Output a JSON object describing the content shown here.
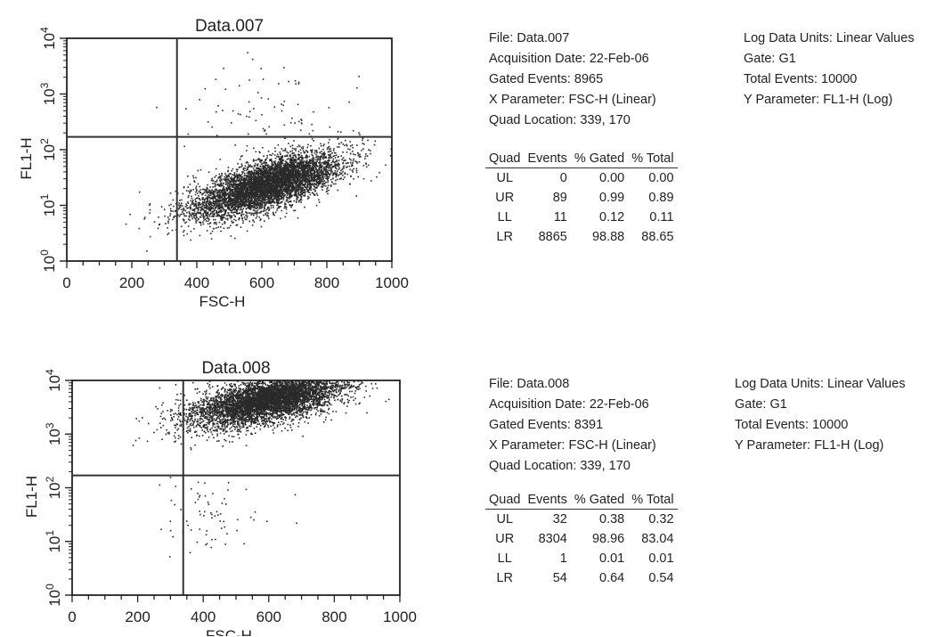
{
  "chart_data": [
    {
      "type": "scatter",
      "title": "Data.007",
      "xlabel": "FSC-H",
      "ylabel": "FL1-H",
      "xlim": [
        0,
        1000
      ],
      "ylim": [
        1,
        10000
      ],
      "yscale": "log",
      "xticks": [
        "0",
        "200",
        "400",
        "600",
        "800",
        "1000"
      ],
      "yticks": [
        {
          "base": "10",
          "exp": "0"
        },
        {
          "base": "10",
          "exp": "1"
        },
        {
          "base": "10",
          "exp": "2"
        },
        {
          "base": "10",
          "exp": "3"
        },
        {
          "base": "10",
          "exp": "4"
        }
      ],
      "quad_location": {
        "x": 339,
        "y": 170
      },
      "clusters": [
        {
          "x_center": 600,
          "x_spread": 120,
          "log_y_center": 1.35,
          "log_y_spread": 0.22,
          "count": 4200,
          "tilt": 0.0018
        },
        {
          "x_center": 650,
          "x_spread": 90,
          "log_y_center": 1.45,
          "log_y_spread": 0.18,
          "count": 1600,
          "tilt": 0.0015
        }
      ],
      "sparse": [
        {
          "x_center": 620,
          "x_spread": 120,
          "log_y_center": 2.6,
          "log_y_spread": 0.45,
          "count": 90
        }
      ],
      "info": {
        "file": "File: Data.007",
        "acq_date": "Acquisition Date: 22-Feb-06",
        "gated": "Gated Events: 8965",
        "xparam": "X Parameter: FSC-H (Linear)",
        "quadloc": "Quad Location: 339, 170",
        "logunits": "Log Data Units: Linear Values",
        "gate": "Gate: G1",
        "total": "Total Events: 10000",
        "yparam": "Y Parameter: FL1-H (Log)"
      },
      "table": {
        "headers": [
          "Quad",
          "Events",
          "% Gated",
          "% Total"
        ],
        "rows": [
          [
            "UL",
            "0",
            "0.00",
            "0.00"
          ],
          [
            "UR",
            "89",
            "0.99",
            "0.89"
          ],
          [
            "LL",
            "11",
            "0.12",
            "0.11"
          ],
          [
            "LR",
            "8865",
            "98.88",
            "88.65"
          ]
        ]
      }
    },
    {
      "type": "scatter",
      "title": "Data.008",
      "xlabel": "FSC-H",
      "ylabel": "FL1-H",
      "xlim": [
        0,
        1000
      ],
      "ylim": [
        1,
        10000
      ],
      "yscale": "log",
      "xticks": [
        "0",
        "200",
        "400",
        "600",
        "800",
        "1000"
      ],
      "yticks": [
        {
          "base": "10",
          "exp": "0"
        },
        {
          "base": "10",
          "exp": "1"
        },
        {
          "base": "10",
          "exp": "2"
        },
        {
          "base": "10",
          "exp": "3"
        },
        {
          "base": "10",
          "exp": "4"
        }
      ],
      "quad_location": {
        "x": 339,
        "y": 170
      },
      "clusters": [
        {
          "x_center": 580,
          "x_spread": 120,
          "log_y_center": 3.62,
          "log_y_spread": 0.22,
          "count": 4200,
          "tilt": 0.0012
        },
        {
          "x_center": 640,
          "x_spread": 90,
          "log_y_center": 3.72,
          "log_y_spread": 0.15,
          "count": 1600,
          "tilt": 0.001
        }
      ],
      "sparse": [
        {
          "x_center": 420,
          "x_spread": 70,
          "log_y_center": 1.55,
          "log_y_spread": 0.35,
          "count": 70
        }
      ],
      "info": {
        "file": "File: Data.008",
        "acq_date": "Acquisition Date: 22-Feb-06",
        "gated": "Gated Events: 8391",
        "xparam": "X Parameter: FSC-H (Linear)",
        "quadloc": "Quad Location: 339, 170",
        "logunits": "Log Data Units: Linear Values",
        "gate": "Gate: G1",
        "total": "Total Events: 10000",
        "yparam": "Y Parameter: FL1-H (Log)"
      },
      "table": {
        "headers": [
          "Quad",
          "Events",
          "% Gated",
          "% Total"
        ],
        "rows": [
          [
            "UL",
            "32",
            "0.38",
            "0.32"
          ],
          [
            "UR",
            "8304",
            "98.96",
            "83.04"
          ],
          [
            "LL",
            "1",
            "0.01",
            "0.01"
          ],
          [
            "LR",
            "54",
            "0.64",
            "0.54"
          ]
        ]
      }
    }
  ],
  "colors": {
    "dots": "#2a2a2a",
    "axis": "#222222",
    "quad_lines": "#333333"
  }
}
